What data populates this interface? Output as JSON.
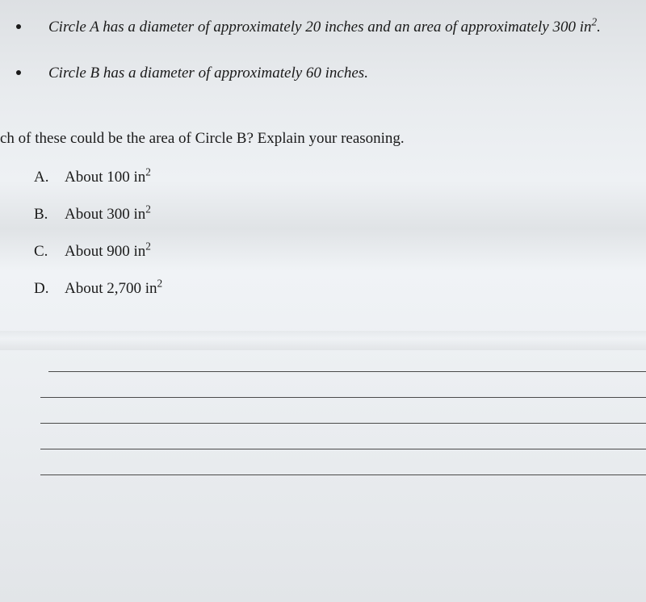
{
  "bullets": [
    {
      "pre": "Circle A has a diameter of approximately 20 inches and an area of approximately 300 in",
      "sup": "2",
      "post": "."
    },
    {
      "pre": "Circle B has a diameter of approximately 60 inches.",
      "sup": "",
      "post": ""
    }
  ],
  "question": "ch of these could be the area of Circle B? Explain your reasoning.",
  "options": [
    {
      "letter": "A.",
      "pre": "About 100 in",
      "sup": "2"
    },
    {
      "letter": "B.",
      "pre": "About 300 in",
      "sup": "2"
    },
    {
      "letter": "C.",
      "pre": "About 900 in",
      "sup": "2"
    },
    {
      "letter": "D.",
      "pre": "About 2,700 in",
      "sup": "2"
    }
  ],
  "line_count": 5,
  "styles": {
    "body_font_size": 19,
    "italic": true,
    "text_color": "#1a1a1a",
    "line_color": "#4a4a4a"
  }
}
